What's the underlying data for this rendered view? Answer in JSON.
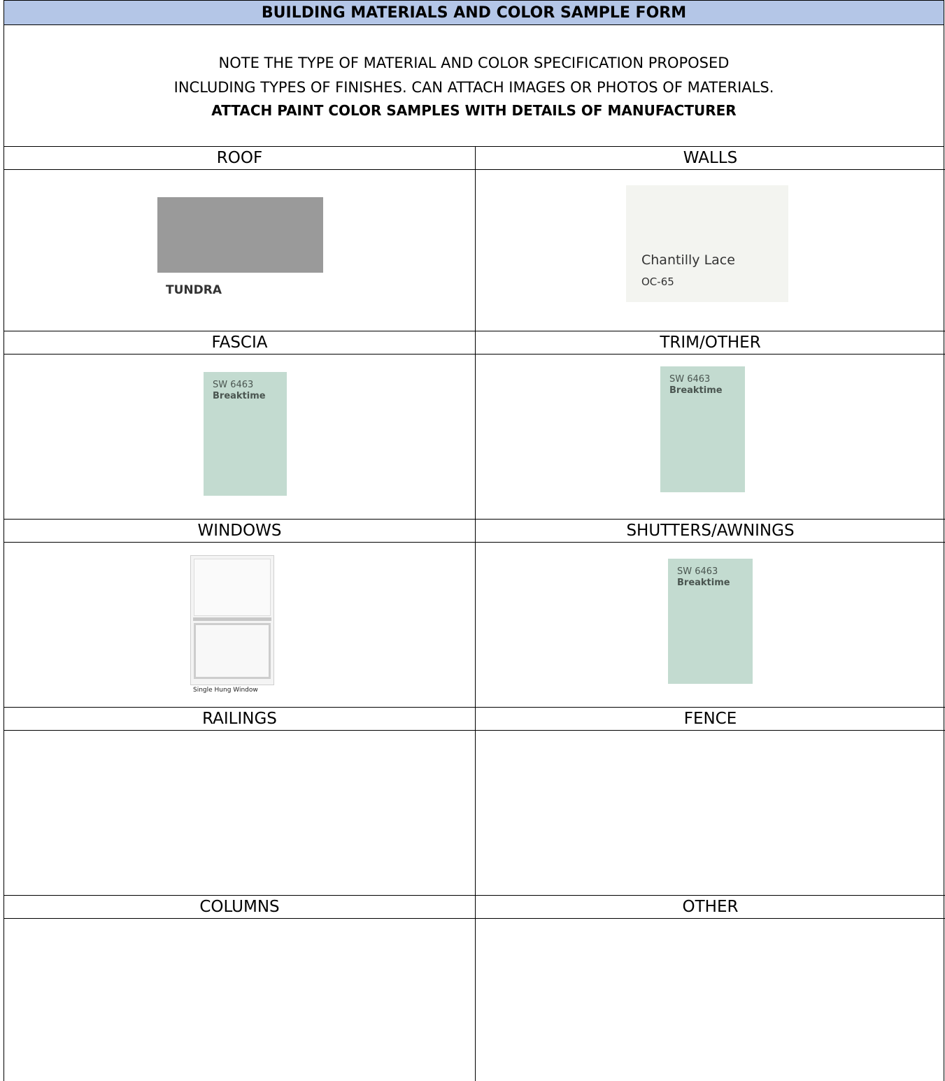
{
  "form": {
    "title": "BUILDING MATERIALS AND COLOR SAMPLE FORM",
    "note_line1": "NOTE THE TYPE OF MATERIAL AND COLOR SPECIFICATION PROPOSED",
    "note_line2": "INCLUDING TYPES OF FINISHES. CAN ATTACH IMAGES OR PHOTOS OF MATERIALS.",
    "note_line3": "ATTACH PAINT COLOR SAMPLES WITH DETAILS OF MANUFACTURER"
  },
  "sections": {
    "roof": "ROOF",
    "walls": "WALLS",
    "fascia": "FASCIA",
    "trim": "TRIM/OTHER",
    "windows": "WINDOWS",
    "shutters": "SHUTTERS/AWNINGS",
    "railings": "RAILINGS",
    "fence": "FENCE",
    "columns": "COLUMNS",
    "other": "OTHER"
  },
  "samples": {
    "roof": {
      "name": "TUNDRA",
      "color": "#9a9a9a"
    },
    "walls": {
      "name": "Chantilly Lace",
      "code": "OC-65",
      "color": "#f3f4f0"
    },
    "fascia": {
      "code": "SW 6463",
      "name": "Breaktime",
      "color": "#c3dbd0"
    },
    "trim": {
      "code": "SW 6463",
      "name": "Breaktime",
      "color": "#c3dbd0"
    },
    "windows": {
      "name": "Single Hung Window"
    },
    "shutters": {
      "code": "SW 6463",
      "name": "Breaktime",
      "color": "#c3dbd0"
    }
  }
}
